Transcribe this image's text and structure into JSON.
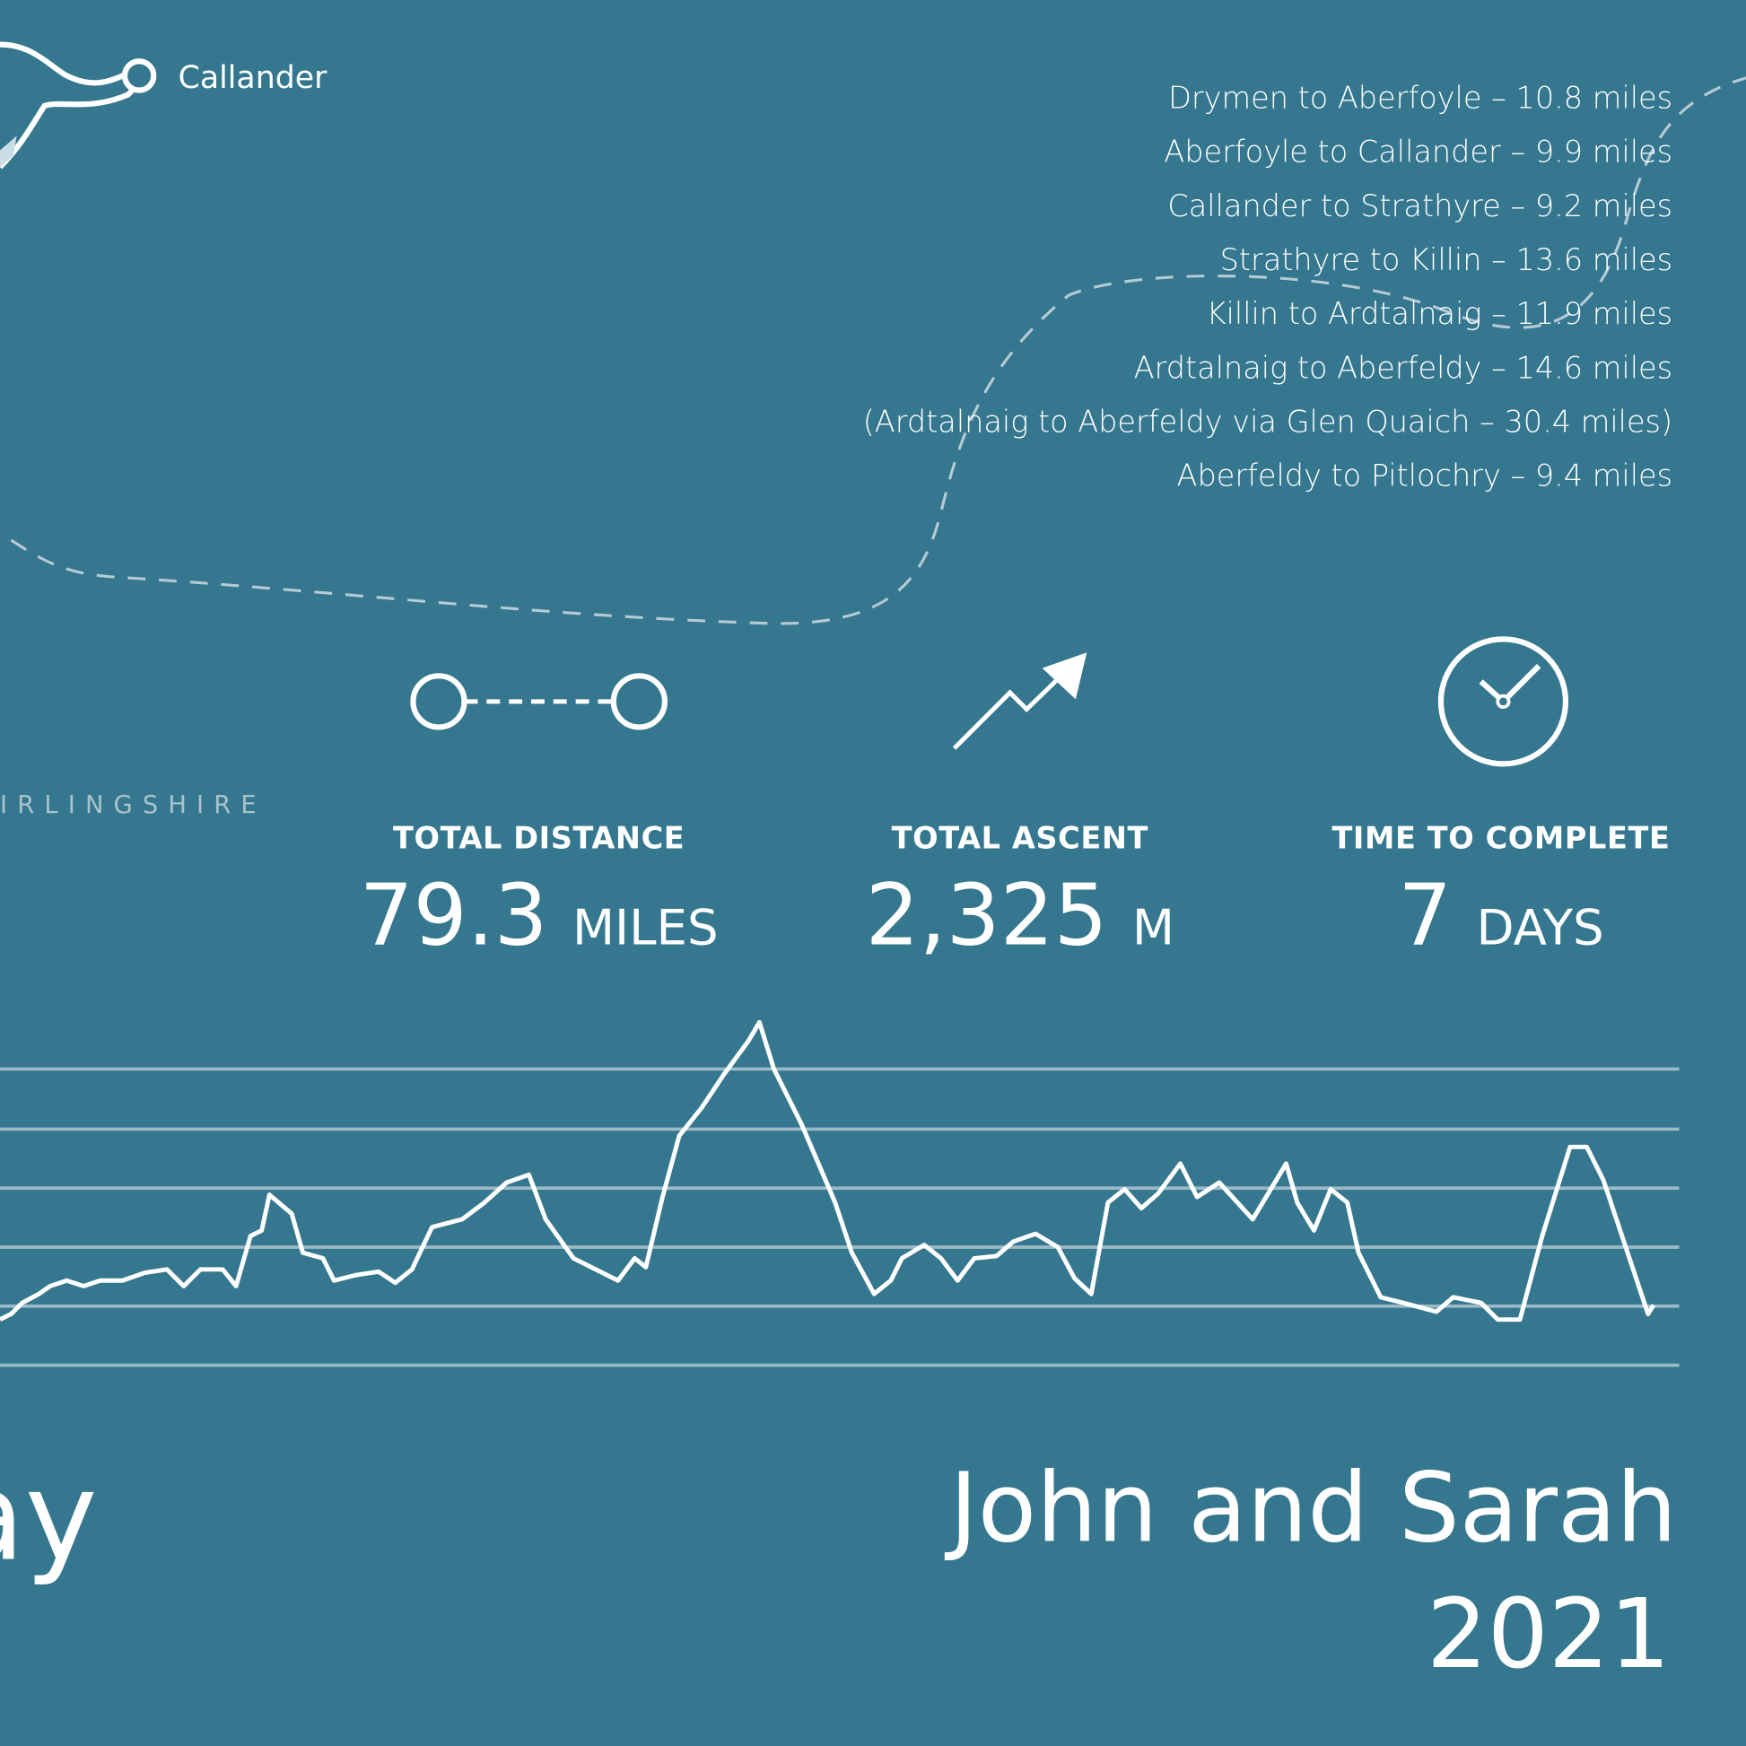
{
  "map": {
    "place_label": "Callander",
    "region_label": "IRLINGSHIRE"
  },
  "stages": [
    "Drymen to Aberfoyle – 10.8 miles",
    "Aberfoyle to Callander – 9.9 miles",
    "Callander to Strathyre – 9.2 miles",
    "Strathyre to Killin – 13.6 miles",
    "Killin to Ardtalnaig – 11.9 miles",
    "Ardtalnaig to Aberfeldy – 14.6 miles",
    "(Ardtalnaig to Aberfeldy via Glen Quaich – 30.4 miles)",
    "Aberfeldy to Pitlochry – 9.4 miles"
  ],
  "stats": [
    {
      "label": "TOTAL DISTANCE",
      "value": "79.3",
      "unit": "MILES"
    },
    {
      "label": "TOTAL ASCENT",
      "value": "2,325",
      "unit": "M"
    },
    {
      "label": "TIME TO COMPLETE",
      "value": "7",
      "unit": "DAYS"
    }
  ],
  "title_fragment": "ay",
  "names": "John and Sarah",
  "year": "2021"
}
